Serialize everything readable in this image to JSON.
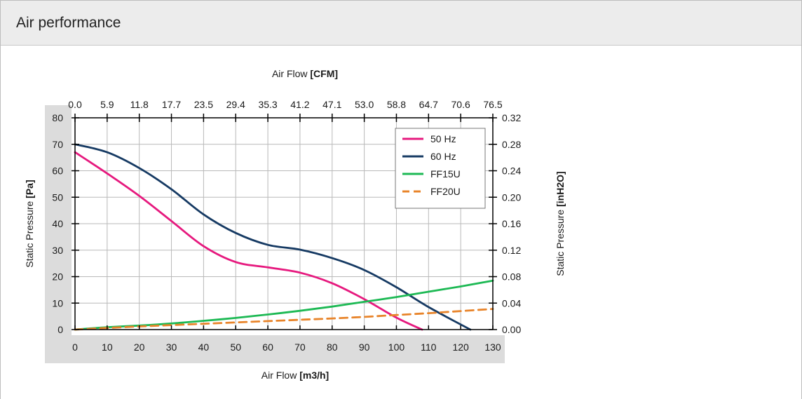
{
  "panel": {
    "title": "Air performance"
  },
  "chart_data": {
    "type": "line",
    "x_bottom": {
      "title": "Air Flow",
      "unit": "[m3/h]",
      "ticks": [
        "0",
        "10",
        "20",
        "30",
        "40",
        "50",
        "60",
        "70",
        "80",
        "90",
        "100",
        "110",
        "120",
        "130"
      ],
      "range": [
        0,
        130
      ]
    },
    "x_top": {
      "title": "Air Flow",
      "unit": "[CFM]",
      "ticks": [
        "0.0",
        "5.9",
        "11.8",
        "17.7",
        "23.5",
        "29.4",
        "35.3",
        "41.2",
        "47.1",
        "53.0",
        "58.8",
        "64.7",
        "70.6",
        "76.5"
      ]
    },
    "y_left": {
      "title": "Static Pressure",
      "unit": "[Pa]",
      "ticks": [
        "0",
        "10",
        "20",
        "30",
        "40",
        "50",
        "60",
        "70",
        "80"
      ],
      "range": [
        0,
        80
      ]
    },
    "y_right": {
      "title": "Static Pressure",
      "unit": "[inH2O]",
      "ticks": [
        "0.00",
        "0.04",
        "0.08",
        "0.12",
        "0.16",
        "0.20",
        "0.24",
        "0.28",
        "0.32"
      ]
    },
    "grid": true,
    "legend_position": "top-right",
    "series": [
      {
        "name": "50 Hz",
        "color": "#e6197e",
        "dash": false,
        "points": [
          [
            0,
            67
          ],
          [
            10,
            59
          ],
          [
            20,
            50.5
          ],
          [
            30,
            41
          ],
          [
            40,
            31.5
          ],
          [
            50,
            25.5
          ],
          [
            60,
            23.5
          ],
          [
            70,
            21.5
          ],
          [
            80,
            17.5
          ],
          [
            90,
            11.5
          ],
          [
            100,
            4.5
          ],
          [
            108,
            0
          ]
        ]
      },
      {
        "name": "60 Hz",
        "color": "#163a63",
        "dash": false,
        "points": [
          [
            0,
            70
          ],
          [
            10,
            67
          ],
          [
            20,
            61
          ],
          [
            30,
            53
          ],
          [
            40,
            43.5
          ],
          [
            50,
            36.5
          ],
          [
            60,
            32
          ],
          [
            70,
            30.2
          ],
          [
            80,
            27
          ],
          [
            90,
            22.5
          ],
          [
            100,
            16
          ],
          [
            110,
            8.5
          ],
          [
            123,
            0
          ]
        ]
      },
      {
        "name": "FF15U",
        "color": "#1db954",
        "dash": false,
        "points": [
          [
            0,
            0
          ],
          [
            10,
            0.9
          ],
          [
            20,
            1.5
          ],
          [
            30,
            2.3
          ],
          [
            40,
            3.3
          ],
          [
            50,
            4.4
          ],
          [
            60,
            5.7
          ],
          [
            70,
            7.1
          ],
          [
            80,
            8.7
          ],
          [
            90,
            10.5
          ],
          [
            100,
            12.3
          ],
          [
            110,
            14.3
          ],
          [
            120,
            16.3
          ],
          [
            130,
            18.5
          ]
        ]
      },
      {
        "name": "FF20U",
        "color": "#e8842a",
        "dash": true,
        "points": [
          [
            0,
            0
          ],
          [
            10,
            0.6
          ],
          [
            20,
            1.2
          ],
          [
            30,
            1.7
          ],
          [
            40,
            2.2
          ],
          [
            50,
            2.7
          ],
          [
            60,
            3.2
          ],
          [
            70,
            3.7
          ],
          [
            80,
            4.2
          ],
          [
            90,
            4.8
          ],
          [
            100,
            5.5
          ],
          [
            110,
            6.2
          ],
          [
            120,
            7
          ],
          [
            130,
            7.8
          ]
        ]
      }
    ]
  }
}
